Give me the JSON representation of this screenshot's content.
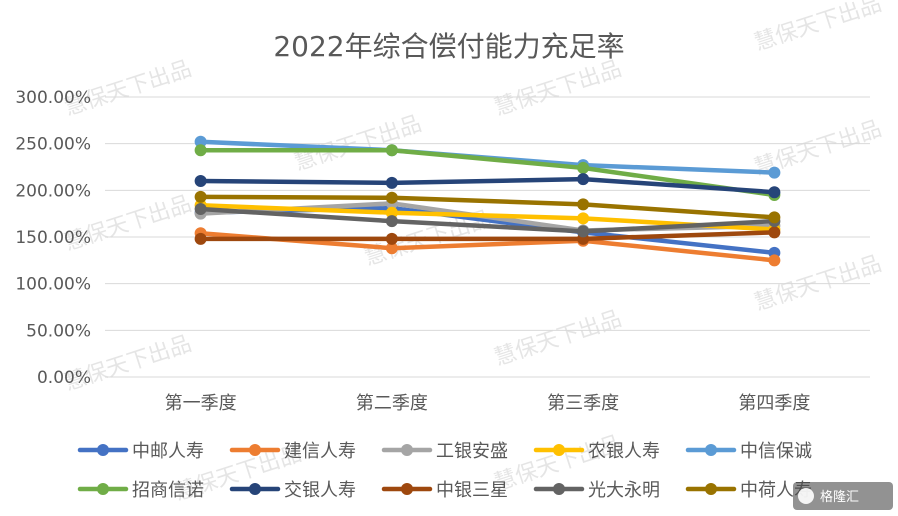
{
  "watermark": "慧保天下出品",
  "brand": "格隆汇",
  "chart_data": {
    "type": "line",
    "title": "2022年综合偿付能力充足率",
    "xlabel": "",
    "ylabel": "",
    "categories": [
      "第一季度",
      "第二季度",
      "第三季度",
      "第四季度"
    ],
    "ylim": [
      0,
      300
    ],
    "yticks": [
      0,
      50,
      100,
      150,
      200,
      250,
      300
    ],
    "ytick_labels": [
      "0.00%",
      "50.00%",
      "100.00%",
      "150.00%",
      "200.00%",
      "250.00%",
      "300.00%"
    ],
    "grid": true,
    "legend": "bottom",
    "series": [
      {
        "name": "中邮人寿",
        "color": "#4472C4",
        "values": [
          176,
          181,
          155,
          133
        ]
      },
      {
        "name": "建信人寿",
        "color": "#ED7D31",
        "values": [
          154,
          138,
          146,
          125
        ]
      },
      {
        "name": "工银安盛",
        "color": "#A5A5A5",
        "values": [
          175,
          186,
          157,
          162
        ]
      },
      {
        "name": "农银人寿",
        "color": "#FFC000",
        "values": [
          184,
          176,
          170,
          158
        ]
      },
      {
        "name": "中信保诚",
        "color": "#5B9BD5",
        "values": [
          252,
          243,
          227,
          219
        ]
      },
      {
        "name": "招商信诺",
        "color": "#70AD47",
        "values": [
          243,
          243,
          224,
          195
        ]
      },
      {
        "name": "交银人寿",
        "color": "#264478",
        "values": [
          210,
          208,
          212,
          198
        ]
      },
      {
        "name": "中银三星",
        "color": "#9E480E",
        "values": [
          148,
          148,
          148,
          155
        ]
      },
      {
        "name": "光大永明",
        "color": "#636363",
        "values": [
          180,
          167,
          156,
          167
        ]
      },
      {
        "name": "中荷人寿",
        "color": "#997300",
        "values": [
          193,
          192,
          185,
          171
        ]
      }
    ]
  }
}
